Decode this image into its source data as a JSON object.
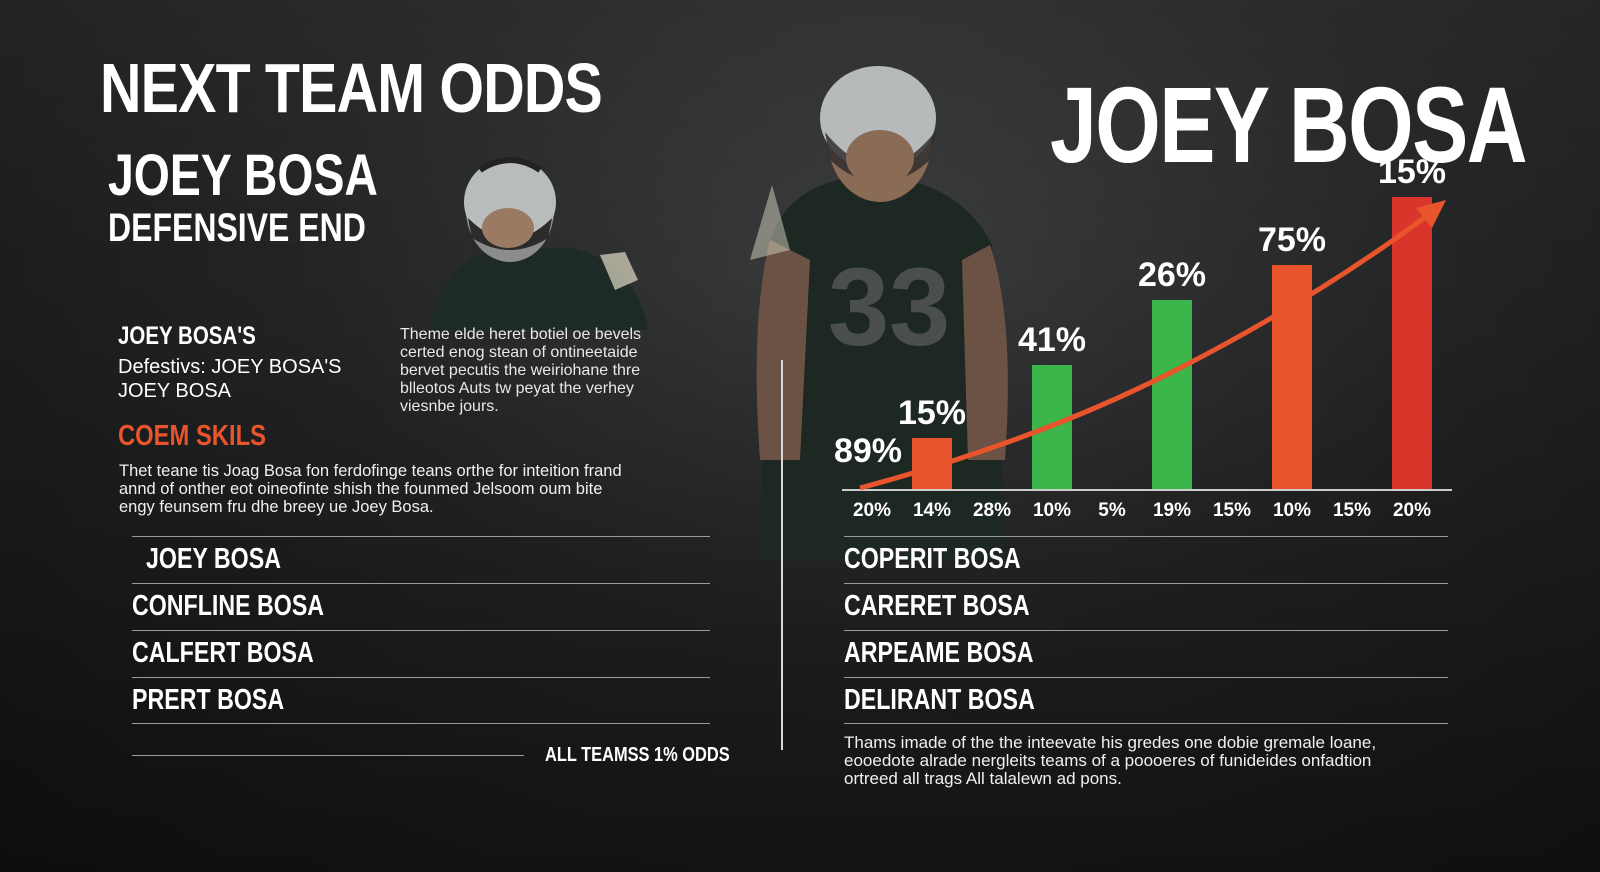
{
  "header": {
    "title": "NEXT TEAM ODDS",
    "player_name": "JOEY BOSA",
    "position": "DEFENSIVE END"
  },
  "left_info": {
    "bold": "JOEY BOSA'S",
    "line1": "Defestivs: JOEY BOSA'S",
    "line2": "JOEY BOSA"
  },
  "description": [
    "Theme elde heret botiel oe bevels",
    "certed enog stean of ontineetaide",
    "bervet pecutis the weiriohane thre",
    "blleotos Auts tw peyat the verhey",
    "viesnbe jours."
  ],
  "skills": {
    "heading": "COEM SKILS",
    "text": [
      "Thet teane tis Joag Bosa fon ferdofinge teans orthe for inteition frand",
      "annd of onther eot oineofinte shish the founmed Jelsoom oum bite",
      "engy feunsem fru dhe breey ue Joey Bosa."
    ]
  },
  "left_list": [
    "JOEY BOSA",
    "CONFLINE BOSA",
    "CALFERT BOSA",
    "PRERT BOSA"
  ],
  "left_footer": "ALL TEAMSS 1% ODDS",
  "right_title": "JOEY BOSA",
  "right_list": [
    "COPERIT BOSA",
    "CARERET BOSA",
    "ARPEAME BOSA",
    "DELIRANT BOSA"
  ],
  "right_description": [
    "Thams imade of the the inteevate his gredes one dobie gremale loane,",
    "eooedote alrade nergleits teams of a poooeres of funideides onfadtion",
    "ortreed all trags All talalewn ad pons."
  ],
  "chart_data": {
    "type": "bar",
    "categories": [
      "20%",
      "14%",
      "28%",
      "10%",
      "5%",
      "19%",
      "15%",
      "10%",
      "15%",
      "20%"
    ],
    "bars": [
      {
        "category": "14%",
        "value": 15,
        "label": "15%",
        "color": "#e8542c"
      },
      {
        "category": "10%",
        "value": 41,
        "label": "41%",
        "color": "#3cb54a"
      },
      {
        "category": "19%",
        "value": 26,
        "label": "26%",
        "color": "#3cb54a"
      },
      {
        "category": "10%",
        "value": 75,
        "label": "75%",
        "color": "#e8542c"
      },
      {
        "category": "20%",
        "value": 15,
        "label": "15%",
        "color": "#d9352b"
      }
    ],
    "extra_label": "89%",
    "trend_arrow": true,
    "colors": {
      "orange": "#e8542c",
      "green": "#3cb54a",
      "red": "#d9352b"
    }
  }
}
